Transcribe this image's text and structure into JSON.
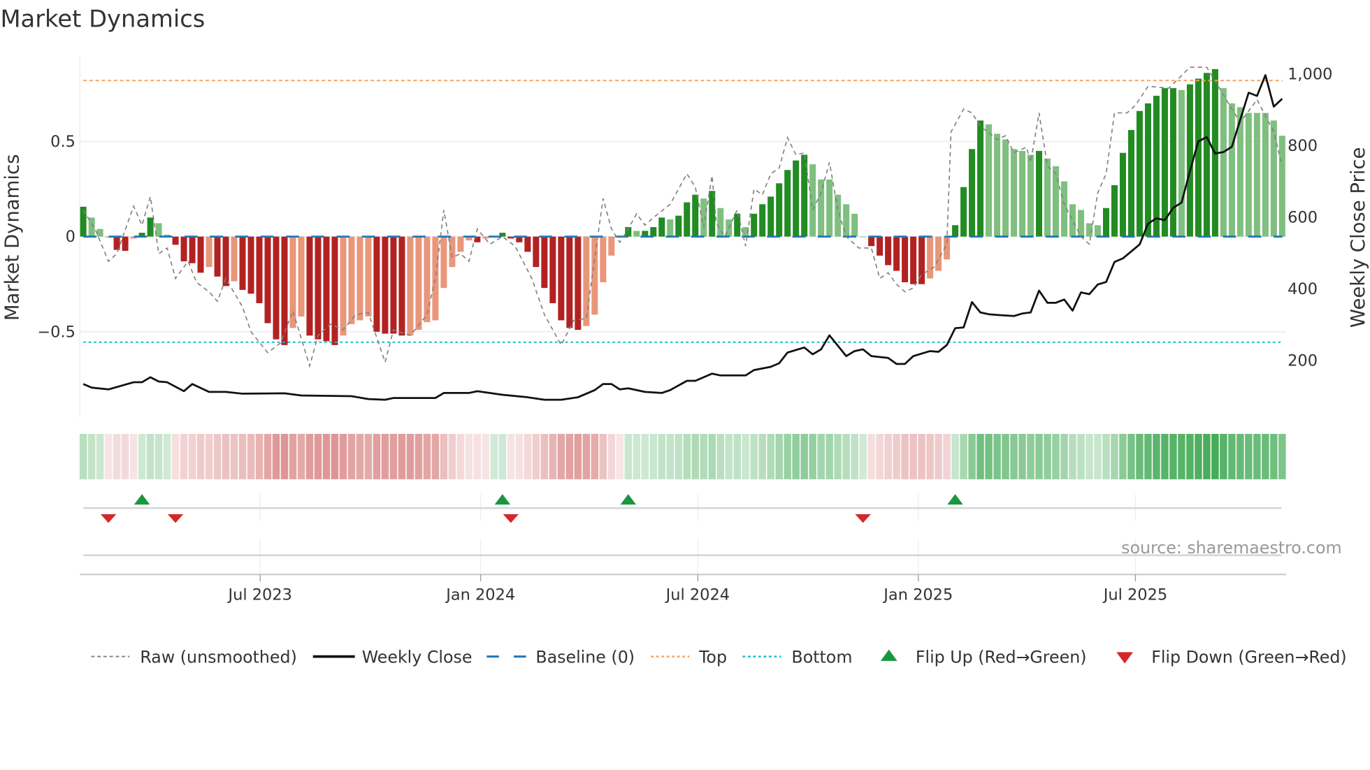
{
  "chart_data": {
    "type": "bar",
    "title": "Market Dynamics",
    "ylabel": "Market Dynamics",
    "y2label": "Weekly Close Price",
    "ylim": [
      -0.95,
      0.95
    ],
    "y2lim": [
      0,
      1100
    ],
    "yticks": [
      {
        "v": 0.5,
        "label": "0.5"
      },
      {
        "v": 0,
        "label": "0"
      },
      {
        "v": -0.5,
        "label": "−0.5"
      }
    ],
    "y2ticks": [
      {
        "v": 1000,
        "label": "1,000"
      },
      {
        "v": 800,
        "label": "800"
      },
      {
        "v": 600,
        "label": "600"
      },
      {
        "v": 400,
        "label": "400"
      },
      {
        "v": 200,
        "label": "200"
      }
    ],
    "x_unit": "week index",
    "xticks": [
      {
        "week": 21.1,
        "label": "Jul 2023"
      },
      {
        "week": 47.4,
        "label": "Jan 2024"
      },
      {
        "week": 73.3,
        "label": "Jul 2024"
      },
      {
        "week": 99.6,
        "label": "Jan 2025"
      },
      {
        "week": 125.5,
        "label": "Jul 2025"
      }
    ],
    "top_level": 0.82,
    "bottom_level": -0.555,
    "baseline": 0,
    "bars": [
      [
        0.157,
        1
      ],
      [
        0.1,
        0
      ],
      [
        0.04,
        0
      ],
      [
        -0.005,
        0
      ],
      [
        -0.07,
        1
      ],
      [
        -0.075,
        1
      ],
      [
        -0.01,
        0
      ],
      [
        0.02,
        1
      ],
      [
        0.1,
        1
      ],
      [
        0.07,
        0
      ],
      [
        0.01,
        0
      ],
      [
        -0.043,
        1
      ],
      [
        -0.13,
        1
      ],
      [
        -0.14,
        1
      ],
      [
        -0.19,
        1
      ],
      [
        -0.16,
        0
      ],
      [
        -0.21,
        1
      ],
      [
        -0.26,
        1
      ],
      [
        -0.235,
        0
      ],
      [
        -0.28,
        1
      ],
      [
        -0.3,
        1
      ],
      [
        -0.35,
        1
      ],
      [
        -0.455,
        1
      ],
      [
        -0.54,
        1
      ],
      [
        -0.57,
        1
      ],
      [
        -0.48,
        0
      ],
      [
        -0.42,
        0
      ],
      [
        -0.52,
        1
      ],
      [
        -0.54,
        1
      ],
      [
        -0.55,
        1
      ],
      [
        -0.57,
        1
      ],
      [
        -0.52,
        0
      ],
      [
        -0.46,
        0
      ],
      [
        -0.44,
        0
      ],
      [
        -0.42,
        0
      ],
      [
        -0.5,
        1
      ],
      [
        -0.51,
        1
      ],
      [
        -0.51,
        1
      ],
      [
        -0.52,
        1
      ],
      [
        -0.52,
        0
      ],
      [
        -0.49,
        0
      ],
      [
        -0.45,
        0
      ],
      [
        -0.44,
        0
      ],
      [
        -0.27,
        0
      ],
      [
        -0.16,
        0
      ],
      [
        -0.08,
        0
      ],
      [
        -0.02,
        0
      ],
      [
        -0.03,
        1
      ],
      [
        -0.01,
        0
      ],
      [
        0.0,
        0
      ],
      [
        0.02,
        1
      ],
      [
        -0.01,
        1
      ],
      [
        -0.03,
        1
      ],
      [
        -0.08,
        1
      ],
      [
        -0.16,
        1
      ],
      [
        -0.27,
        1
      ],
      [
        -0.35,
        1
      ],
      [
        -0.44,
        1
      ],
      [
        -0.48,
        1
      ],
      [
        -0.49,
        1
      ],
      [
        -0.47,
        0
      ],
      [
        -0.41,
        0
      ],
      [
        -0.24,
        0
      ],
      [
        -0.1,
        0
      ],
      [
        -0.005,
        0
      ],
      [
        0.05,
        1
      ],
      [
        0.03,
        0
      ],
      [
        0.03,
        1
      ],
      [
        0.05,
        1
      ],
      [
        0.1,
        1
      ],
      [
        0.09,
        0
      ],
      [
        0.11,
        1
      ],
      [
        0.18,
        1
      ],
      [
        0.22,
        1
      ],
      [
        0.2,
        0
      ],
      [
        0.24,
        1
      ],
      [
        0.15,
        0
      ],
      [
        0.09,
        0
      ],
      [
        0.12,
        1
      ],
      [
        0.05,
        0
      ],
      [
        0.12,
        1
      ],
      [
        0.17,
        1
      ],
      [
        0.21,
        1
      ],
      [
        0.28,
        1
      ],
      [
        0.35,
        1
      ],
      [
        0.4,
        1
      ],
      [
        0.43,
        1
      ],
      [
        0.38,
        0
      ],
      [
        0.3,
        0
      ],
      [
        0.3,
        0
      ],
      [
        0.22,
        0
      ],
      [
        0.17,
        0
      ],
      [
        0.12,
        0
      ],
      [
        0.0,
        0
      ],
      [
        -0.05,
        1
      ],
      [
        -0.1,
        1
      ],
      [
        -0.15,
        1
      ],
      [
        -0.18,
        1
      ],
      [
        -0.24,
        1
      ],
      [
        -0.25,
        1
      ],
      [
        -0.25,
        1
      ],
      [
        -0.22,
        0
      ],
      [
        -0.18,
        0
      ],
      [
        -0.12,
        0
      ],
      [
        0.06,
        1
      ],
      [
        0.26,
        1
      ],
      [
        0.46,
        1
      ],
      [
        0.61,
        1
      ],
      [
        0.59,
        0
      ],
      [
        0.54,
        0
      ],
      [
        0.51,
        0
      ],
      [
        0.46,
        0
      ],
      [
        0.45,
        0
      ],
      [
        0.43,
        0
      ],
      [
        0.45,
        1
      ],
      [
        0.41,
        0
      ],
      [
        0.37,
        0
      ],
      [
        0.29,
        0
      ],
      [
        0.17,
        0
      ],
      [
        0.14,
        0
      ],
      [
        0.07,
        0
      ],
      [
        0.06,
        0
      ],
      [
        0.15,
        1
      ],
      [
        0.27,
        1
      ],
      [
        0.44,
        1
      ],
      [
        0.56,
        1
      ],
      [
        0.66,
        1
      ],
      [
        0.7,
        1
      ],
      [
        0.74,
        1
      ],
      [
        0.78,
        1
      ],
      [
        0.78,
        1
      ],
      [
        0.77,
        0
      ],
      [
        0.8,
        1
      ],
      [
        0.83,
        1
      ],
      [
        0.86,
        1
      ],
      [
        0.88,
        1
      ],
      [
        0.78,
        0
      ],
      [
        0.7,
        0
      ],
      [
        0.68,
        0
      ],
      [
        0.65,
        0
      ],
      [
        0.65,
        0
      ],
      [
        0.65,
        0
      ],
      [
        0.61,
        0
      ],
      [
        0.53,
        0
      ]
    ],
    "raw": [
      [
        0,
        0.14
      ],
      [
        1.5,
        0.03
      ],
      [
        3,
        -0.13
      ],
      [
        4,
        -0.09
      ],
      [
        6,
        0.16
      ],
      [
        7,
        0.06
      ],
      [
        8,
        0.21
      ],
      [
        9,
        -0.09
      ],
      [
        10,
        -0.06
      ],
      [
        11,
        -0.22
      ],
      [
        12.5,
        -0.13
      ],
      [
        13.5,
        -0.24
      ],
      [
        15,
        -0.29
      ],
      [
        16,
        -0.34
      ],
      [
        17,
        -0.22
      ],
      [
        19,
        -0.37
      ],
      [
        20,
        -0.5
      ],
      [
        22,
        -0.61
      ],
      [
        23.5,
        -0.56
      ],
      [
        25,
        -0.39
      ],
      [
        27,
        -0.68
      ],
      [
        28,
        -0.52
      ],
      [
        29.5,
        -0.46
      ],
      [
        31,
        -0.49
      ],
      [
        32.5,
        -0.41
      ],
      [
        34,
        -0.4
      ],
      [
        36,
        -0.66
      ],
      [
        37,
        -0.49
      ],
      [
        39,
        -0.52
      ],
      [
        41,
        -0.41
      ],
      [
        42,
        -0.22
      ],
      [
        43,
        0.14
      ],
      [
        44,
        -0.11
      ],
      [
        45,
        -0.09
      ],
      [
        46,
        -0.13
      ],
      [
        47,
        0.04
      ],
      [
        48.5,
        -0.04
      ],
      [
        50,
        0
      ],
      [
        51.5,
        -0.05
      ],
      [
        53.5,
        -0.22
      ],
      [
        55,
        -0.41
      ],
      [
        57,
        -0.57
      ],
      [
        58.5,
        -0.44
      ],
      [
        60,
        -0.43
      ],
      [
        62,
        0.2
      ],
      [
        63,
        0.04
      ],
      [
        64,
        -0.03
      ],
      [
        65,
        0.04
      ],
      [
        66,
        0.12
      ],
      [
        67,
        0.06
      ],
      [
        68,
        0.1
      ],
      [
        70,
        0.17
      ],
      [
        72,
        0.33
      ],
      [
        73,
        0.26
      ],
      [
        74,
        0.05
      ],
      [
        75,
        0.32
      ],
      [
        75.5,
        0.07
      ],
      [
        76.5,
        0
      ],
      [
        78,
        0.14
      ],
      [
        79,
        -0.05
      ],
      [
        80,
        0.25
      ],
      [
        81,
        0.22
      ],
      [
        82,
        0.33
      ],
      [
        83,
        0.36
      ],
      [
        84,
        0.52
      ],
      [
        85,
        0.43
      ],
      [
        86,
        0.44
      ],
      [
        87,
        0.14
      ],
      [
        88,
        0.23
      ],
      [
        89,
        0.39
      ],
      [
        90,
        0.14
      ],
      [
        91,
        0
      ],
      [
        92.5,
        -0.06
      ],
      [
        94,
        -0.06
      ],
      [
        95,
        -0.22
      ],
      [
        96,
        -0.19
      ],
      [
        97,
        -0.25
      ],
      [
        98,
        -0.29
      ],
      [
        99,
        -0.27
      ],
      [
        100,
        -0.2
      ],
      [
        101.5,
        -0.16
      ],
      [
        103,
        -0.04
      ],
      [
        103.5,
        0.55
      ],
      [
        105,
        0.67
      ],
      [
        106,
        0.65
      ],
      [
        107,
        0.58
      ],
      [
        109,
        0.51
      ],
      [
        110,
        0.53
      ],
      [
        111,
        0.44
      ],
      [
        112.5,
        0.47
      ],
      [
        113,
        0.39
      ],
      [
        114,
        0.65
      ],
      [
        115,
        0.37
      ],
      [
        116,
        0.33
      ],
      [
        117,
        0.17
      ],
      [
        119,
        0
      ],
      [
        120,
        -0.04
      ],
      [
        121,
        0.23
      ],
      [
        122,
        0.33
      ],
      [
        123,
        0.65
      ],
      [
        124.5,
        0.65
      ],
      [
        125.5,
        0.69
      ],
      [
        127,
        0.79
      ],
      [
        129.5,
        0.78
      ],
      [
        132,
        0.89
      ],
      [
        134,
        0.89
      ],
      [
        135.5,
        0.78
      ],
      [
        137,
        0.67
      ],
      [
        138,
        0.6
      ],
      [
        140,
        0.72
      ],
      [
        142,
        0.55
      ],
      [
        143,
        0.37
      ]
    ],
    "weekly_close": [
      [
        0,
        132
      ],
      [
        1,
        122
      ],
      [
        3,
        117
      ],
      [
        6,
        137
      ],
      [
        7,
        137
      ],
      [
        8,
        151
      ],
      [
        9,
        139
      ],
      [
        10,
        137
      ],
      [
        12,
        112
      ],
      [
        13,
        132
      ],
      [
        15,
        110
      ],
      [
        17,
        110
      ],
      [
        19,
        105
      ],
      [
        24,
        106
      ],
      [
        26,
        100
      ],
      [
        32,
        98
      ],
      [
        34,
        90
      ],
      [
        36,
        88
      ],
      [
        37,
        93
      ],
      [
        42,
        93
      ],
      [
        43,
        107
      ],
      [
        46,
        107
      ],
      [
        47,
        112
      ],
      [
        50,
        102
      ],
      [
        53,
        95
      ],
      [
        55,
        88
      ],
      [
        57,
        88
      ],
      [
        59,
        95
      ],
      [
        61,
        115
      ],
      [
        62,
        132
      ],
      [
        63,
        132
      ],
      [
        64,
        117
      ],
      [
        65,
        120
      ],
      [
        67,
        110
      ],
      [
        69,
        107
      ],
      [
        70,
        115
      ],
      [
        72,
        141
      ],
      [
        73,
        141
      ],
      [
        75,
        161
      ],
      [
        76,
        156
      ],
      [
        77,
        156
      ],
      [
        79,
        156
      ],
      [
        80,
        171
      ],
      [
        82,
        180
      ],
      [
        83,
        190
      ],
      [
        84,
        220
      ],
      [
        86,
        234
      ],
      [
        87,
        215
      ],
      [
        88,
        229
      ],
      [
        89,
        268
      ],
      [
        90,
        239
      ],
      [
        91,
        210
      ],
      [
        92,
        224
      ],
      [
        93,
        229
      ],
      [
        94,
        210
      ],
      [
        96,
        205
      ],
      [
        97,
        188
      ],
      [
        98,
        188
      ],
      [
        99,
        210
      ],
      [
        100,
        217
      ],
      [
        101,
        224
      ],
      [
        102,
        222
      ],
      [
        103,
        241
      ],
      [
        104,
        288
      ],
      [
        105,
        290
      ],
      [
        106,
        361
      ],
      [
        107,
        332
      ],
      [
        108,
        327
      ],
      [
        109,
        325
      ],
      [
        111,
        322
      ],
      [
        112,
        329
      ],
      [
        113,
        332
      ],
      [
        114,
        393
      ],
      [
        115,
        359
      ],
      [
        116,
        359
      ],
      [
        117,
        368
      ],
      [
        118,
        337
      ],
      [
        119,
        388
      ],
      [
        120,
        383
      ],
      [
        121,
        410
      ],
      [
        122,
        417
      ],
      [
        123,
        473
      ],
      [
        124,
        483
      ],
      [
        126,
        522
      ],
      [
        127,
        580
      ],
      [
        128,
        595
      ],
      [
        129,
        590
      ],
      [
        130,
        624
      ],
      [
        131,
        639
      ],
      [
        132,
        727
      ],
      [
        133,
        810
      ],
      [
        134,
        822
      ],
      [
        135,
        776
      ],
      [
        136,
        780
      ],
      [
        137,
        795
      ],
      [
        139,
        946
      ],
      [
        140,
        937
      ],
      [
        141,
        995
      ],
      [
        142,
        907
      ],
      [
        143,
        929
      ]
    ],
    "flip_up_weeks": [
      7,
      50,
      65,
      104
    ],
    "flip_down_weeks": [
      3,
      11,
      51,
      93
    ],
    "legend": [
      {
        "key": "raw",
        "label": "Raw (unsmoothed)"
      },
      {
        "key": "close",
        "label": "Weekly Close"
      },
      {
        "key": "baseline",
        "label": "Baseline (0)"
      },
      {
        "key": "top",
        "label": "Top"
      },
      {
        "key": "bottom",
        "label": "Bottom"
      },
      {
        "key": "flipup",
        "label": "Flip Up (Red→Green)"
      },
      {
        "key": "flipdown",
        "label": "Flip Down (Green→Red)"
      }
    ],
    "legend_placement": "bottom",
    "source": "source: sharemaestro.com"
  },
  "colors": {
    "strong_up": "#228b22",
    "weak_up": "#7fbf7f",
    "strong_down": "#b22222",
    "weak_down": "#e9967a",
    "baseline": "#1f77b4",
    "top": "#f4a460",
    "bottom": "#17becf",
    "raw": "#808080",
    "close": "#111111",
    "flip_up": "#1a9641",
    "flip_down": "#d62728"
  }
}
